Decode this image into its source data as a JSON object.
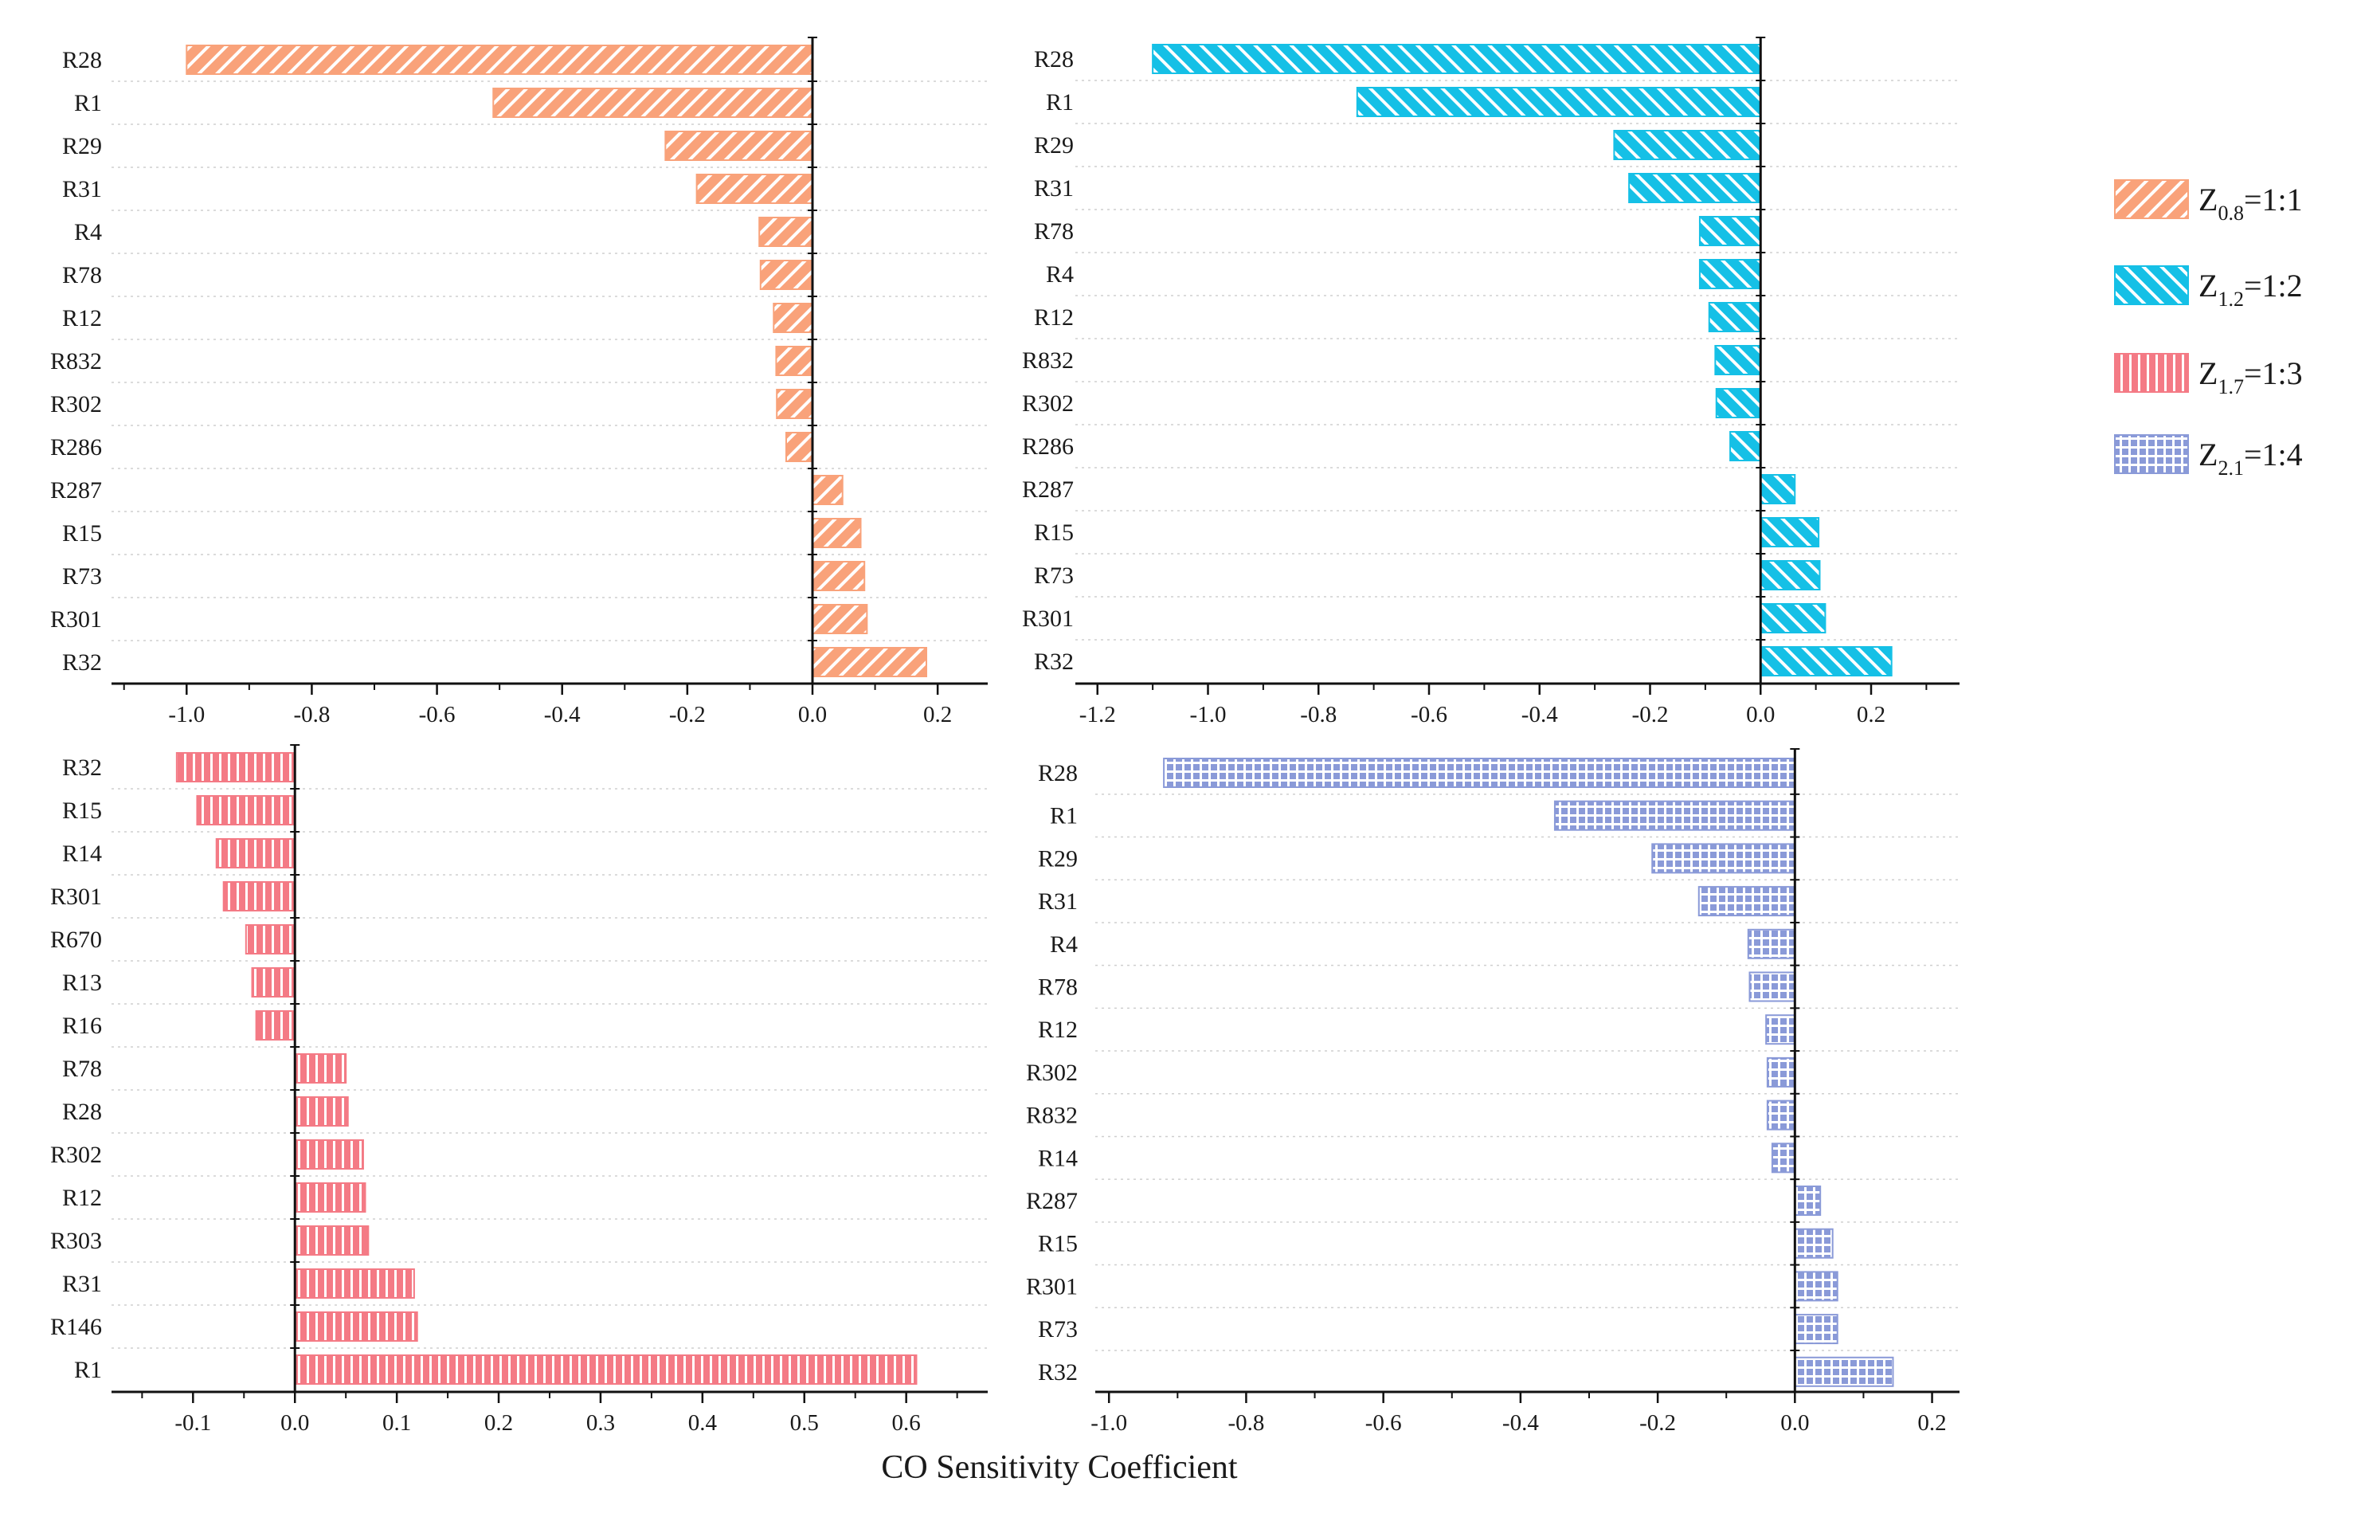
{
  "chart_data": [
    {
      "type": "bar",
      "orientation": "horizontal",
      "panel": "top-left",
      "series_name": "Z0.8=1:1",
      "categories": [
        "R28",
        "R1",
        "R29",
        "R31",
        "R4",
        "R78",
        "R12",
        "R832",
        "R302",
        "R286",
        "R287",
        "R15",
        "R73",
        "R301",
        "R32"
      ],
      "values": [
        -1.0,
        -0.51,
        -0.235,
        -0.185,
        -0.085,
        -0.083,
        -0.062,
        -0.058,
        -0.057,
        -0.042,
        0.048,
        0.077,
        0.083,
        0.087,
        0.182
      ],
      "xlim": [
        -1.12,
        0.28
      ],
      "xticks": [
        -1.0,
        -0.8,
        -0.6,
        -0.4,
        -0.2,
        0.0,
        0.2
      ],
      "xtick_labels": [
        "-1.0",
        "-0.8",
        "-0.6",
        "-0.4",
        "-0.2",
        "0.0",
        "0.2"
      ],
      "fill": "#f9a27a",
      "pattern": "diag-forward"
    },
    {
      "type": "bar",
      "orientation": "horizontal",
      "panel": "top-right",
      "series_name": "Z1.2=1:2",
      "categories": [
        "R28",
        "R1",
        "R29",
        "R31",
        "R78",
        "R4",
        "R12",
        "R832",
        "R302",
        "R286",
        "R287",
        "R15",
        "R73",
        "R301",
        "R32"
      ],
      "values": [
        -1.1,
        -0.73,
        -0.265,
        -0.238,
        -0.11,
        -0.11,
        -0.093,
        -0.082,
        -0.08,
        -0.055,
        0.062,
        0.105,
        0.107,
        0.117,
        0.237
      ],
      "xlim": [
        -1.24,
        0.36
      ],
      "xticks": [
        -1.2,
        -1.0,
        -0.8,
        -0.6,
        -0.4,
        -0.2,
        0.0,
        0.2
      ],
      "xtick_labels": [
        "-1.2",
        "-1.0",
        "-0.8",
        "-0.6",
        "-0.4",
        "-0.2",
        "0.0",
        "0.2"
      ],
      "fill": "#15c0e6",
      "pattern": "diag-backward"
    },
    {
      "type": "bar",
      "orientation": "horizontal",
      "panel": "bottom-left",
      "series_name": "Z1.7=1:3",
      "categories": [
        "R32",
        "R15",
        "R14",
        "R301",
        "R670",
        "R13",
        "R16",
        "R78",
        "R28",
        "R302",
        "R12",
        "R303",
        "R31",
        "R146",
        "R1"
      ],
      "values": [
        -0.116,
        -0.096,
        -0.077,
        -0.07,
        -0.048,
        -0.042,
        -0.038,
        0.05,
        0.052,
        0.067,
        0.069,
        0.072,
        0.117,
        0.12,
        0.61
      ],
      "xlim": [
        -0.18,
        0.68
      ],
      "xticks": [
        -0.1,
        0.0,
        0.1,
        0.2,
        0.3,
        0.4,
        0.5,
        0.6
      ],
      "xtick_labels": [
        "-0.1",
        "0.0",
        "0.1",
        "0.2",
        "0.3",
        "0.4",
        "0.5",
        "0.6"
      ],
      "fill": "#f47a85",
      "pattern": "vertical-stripes"
    },
    {
      "type": "bar",
      "orientation": "horizontal",
      "panel": "bottom-right",
      "series_name": "Z2.1=1:4",
      "categories": [
        "R28",
        "R1",
        "R29",
        "R31",
        "R4",
        "R78",
        "R12",
        "R302",
        "R832",
        "R14",
        "R287",
        "R15",
        "R301",
        "R73",
        "R32"
      ],
      "values": [
        -0.92,
        -0.35,
        -0.208,
        -0.14,
        -0.068,
        -0.066,
        -0.042,
        -0.04,
        -0.04,
        -0.033,
        0.037,
        0.055,
        0.062,
        0.062,
        0.143
      ],
      "xlim": [
        -1.02,
        0.24
      ],
      "xticks": [
        -1.0,
        -0.8,
        -0.6,
        -0.4,
        -0.2,
        0.0,
        0.2
      ],
      "xtick_labels": [
        "-1.0",
        "-0.8",
        "-0.6",
        "-0.4",
        "-0.2",
        "0.0",
        "0.2"
      ],
      "fill": "#8a9ad8",
      "pattern": "grid"
    }
  ],
  "xlabel": "CO Sensitivity Coefficient",
  "legend": {
    "placement": "right",
    "entries": [
      {
        "symbol": "Z",
        "subscript": "0.8",
        "ratio": "=1:1",
        "color": "#f9a27a",
        "pattern": "diag-forward"
      },
      {
        "symbol": "Z",
        "subscript": "1.2",
        "ratio": "=1:2",
        "color": "#15c0e6",
        "pattern": "diag-backward"
      },
      {
        "symbol": "Z",
        "subscript": "1.7",
        "ratio": "=1:3",
        "color": "#f47a85",
        "pattern": "vertical-stripes"
      },
      {
        "symbol": "Z",
        "subscript": "2.1",
        "ratio": "=1:4",
        "color": "#8a9ad8",
        "pattern": "grid"
      }
    ]
  }
}
